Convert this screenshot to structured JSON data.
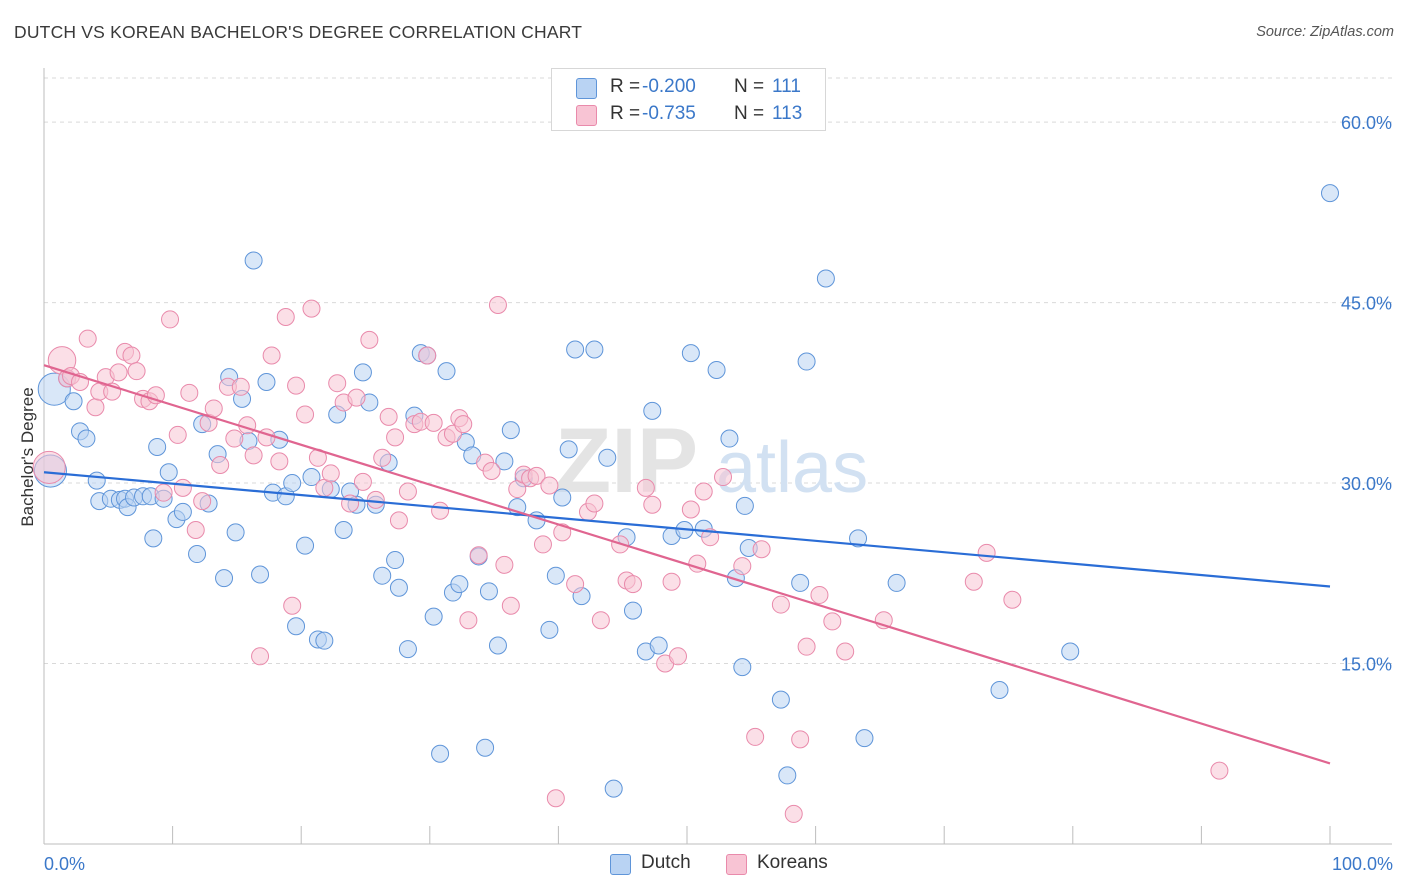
{
  "title": "DUTCH VS KOREAN BACHELOR'S DEGREE CORRELATION CHART",
  "source": "Source: ZipAtlas.com",
  "watermark": {
    "zip": "ZIP",
    "atlas": "atlas"
  },
  "colors": {
    "dutch_fill": "#b9d3f3",
    "dutch_stroke": "#5f95d9",
    "dutch_line": "#2a6dd6",
    "korean_fill": "#f8c4d4",
    "korean_stroke": "#e98aab",
    "korean_line": "#e06590",
    "axis_label": "#3b78c9",
    "grid": "#d9d9d9"
  },
  "legend_top": {
    "rows": [
      {
        "series": "Dutch",
        "r_label": "R =",
        "r_value": "-0.200",
        "n_label": "N =",
        "n_value": "111"
      },
      {
        "series": "Koreans",
        "r_label": "R =",
        "r_value": "-0.735",
        "n_label": "N =",
        "n_value": "113"
      }
    ]
  },
  "legend_bottom": {
    "items": [
      "Dutch",
      "Koreans"
    ]
  },
  "chart_data": {
    "type": "scatter",
    "title": "DUTCH VS KOREAN BACHELOR'S DEGREE CORRELATION CHART",
    "xlabel": "",
    "ylabel": "Bachelor's Degree",
    "xlim": [
      0,
      100
    ],
    "ylim": [
      0,
      63.5
    ],
    "x_tick_labels": [
      "0.0%",
      "100.0%"
    ],
    "y_ticks": [
      15,
      30,
      45,
      60
    ],
    "y_tick_labels": [
      "15.0%",
      "30.0%",
      "45.0%",
      "60.0%"
    ],
    "grid": true,
    "legend_position": "top-center",
    "series": [
      {
        "name": "Dutch",
        "trend": {
          "x": [
            0,
            100
          ],
          "y": [
            30.9,
            21.4
          ]
        },
        "points": [
          [
            0.5,
            31.0,
            1.4
          ],
          [
            0.8,
            37.8,
            1.4
          ],
          [
            1.8,
            38.7,
            1
          ],
          [
            2.3,
            36.8,
            1
          ],
          [
            2.8,
            34.3,
            1
          ],
          [
            3.3,
            33.7,
            1
          ],
          [
            4.1,
            30.2,
            1
          ],
          [
            4.3,
            28.5,
            1
          ],
          [
            5.2,
            28.7,
            1
          ],
          [
            5.9,
            28.6,
            1
          ],
          [
            6.3,
            28.7,
            1
          ],
          [
            6.5,
            28.0,
            1
          ],
          [
            7.0,
            28.8,
            1
          ],
          [
            7.7,
            28.9,
            1
          ],
          [
            8.3,
            28.9,
            1
          ],
          [
            8.5,
            25.4,
            1
          ],
          [
            8.8,
            33.0,
            1
          ],
          [
            9.3,
            28.7,
            1
          ],
          [
            9.7,
            30.9,
            1
          ],
          [
            10.3,
            27.0,
            1
          ],
          [
            10.8,
            27.6,
            1
          ],
          [
            11.9,
            24.1,
            1
          ],
          [
            12.3,
            34.9,
            1
          ],
          [
            12.8,
            28.3,
            1
          ],
          [
            13.5,
            32.4,
            1
          ],
          [
            14.0,
            22.1,
            1
          ],
          [
            14.4,
            38.8,
            1
          ],
          [
            14.9,
            25.9,
            1
          ],
          [
            15.4,
            37.0,
            1
          ],
          [
            15.9,
            33.5,
            1
          ],
          [
            16.3,
            48.5,
            1
          ],
          [
            16.8,
            22.4,
            1
          ],
          [
            17.3,
            38.4,
            1
          ],
          [
            17.8,
            29.2,
            1
          ],
          [
            18.3,
            33.6,
            1
          ],
          [
            18.8,
            28.9,
            1
          ],
          [
            19.3,
            30.0,
            1
          ],
          [
            19.6,
            18.1,
            1
          ],
          [
            20.3,
            24.8,
            1
          ],
          [
            20.8,
            30.5,
            1
          ],
          [
            21.3,
            17.0,
            1
          ],
          [
            21.8,
            16.9,
            1
          ],
          [
            22.3,
            29.5,
            1
          ],
          [
            22.8,
            35.7,
            1
          ],
          [
            23.3,
            26.1,
            1
          ],
          [
            23.8,
            29.3,
            1
          ],
          [
            24.3,
            28.2,
            1
          ],
          [
            24.8,
            39.2,
            1
          ],
          [
            25.3,
            36.7,
            1
          ],
          [
            25.8,
            28.2,
            1
          ],
          [
            26.3,
            22.3,
            1
          ],
          [
            26.8,
            31.7,
            1
          ],
          [
            27.3,
            23.6,
            1
          ],
          [
            27.6,
            21.3,
            1
          ],
          [
            28.3,
            16.2,
            1
          ],
          [
            28.8,
            35.6,
            1
          ],
          [
            29.3,
            40.8,
            1
          ],
          [
            29.8,
            40.6,
            1
          ],
          [
            30.3,
            18.9,
            1
          ],
          [
            30.8,
            7.5,
            1
          ],
          [
            31.3,
            39.3,
            1
          ],
          [
            31.8,
            20.9,
            1
          ],
          [
            32.3,
            21.6,
            1
          ],
          [
            32.8,
            33.4,
            1
          ],
          [
            33.3,
            32.3,
            1
          ],
          [
            33.8,
            23.9,
            1
          ],
          [
            34.3,
            8.0,
            1
          ],
          [
            34.6,
            21.0,
            1
          ],
          [
            35.3,
            16.5,
            1
          ],
          [
            35.8,
            31.8,
            1
          ],
          [
            36.3,
            34.4,
            1
          ],
          [
            36.8,
            28.0,
            1
          ],
          [
            37.3,
            30.4,
            1
          ],
          [
            38.3,
            26.9,
            1
          ],
          [
            39.3,
            17.8,
            1
          ],
          [
            39.8,
            22.3,
            1
          ],
          [
            40.3,
            28.8,
            1
          ],
          [
            40.8,
            32.8,
            1
          ],
          [
            41.3,
            41.1,
            1
          ],
          [
            41.8,
            20.6,
            1
          ],
          [
            42.8,
            41.1,
            1
          ],
          [
            43.8,
            32.1,
            1
          ],
          [
            44.3,
            4.6,
            1
          ],
          [
            45.3,
            25.5,
            1
          ],
          [
            45.8,
            19.4,
            1
          ],
          [
            46.8,
            16.0,
            1
          ],
          [
            47.3,
            36.0,
            1
          ],
          [
            47.8,
            16.5,
            1
          ],
          [
            48.8,
            25.6,
            1
          ],
          [
            49.8,
            26.1,
            1
          ],
          [
            50.3,
            40.8,
            1
          ],
          [
            51.3,
            26.2,
            1
          ],
          [
            52.3,
            39.4,
            1
          ],
          [
            53.3,
            33.7,
            1
          ],
          [
            53.8,
            22.1,
            1
          ],
          [
            54.3,
            14.7,
            1
          ],
          [
            54.8,
            24.6,
            1
          ],
          [
            54.5,
            28.1,
            1
          ],
          [
            57.3,
            12.0,
            1
          ],
          [
            57.8,
            5.7,
            1
          ],
          [
            58.8,
            21.7,
            1
          ],
          [
            59.3,
            40.1,
            1
          ],
          [
            60.8,
            47.0,
            1
          ],
          [
            63.3,
            25.4,
            1
          ],
          [
            63.8,
            8.8,
            1
          ],
          [
            66.3,
            21.7,
            1
          ],
          [
            74.3,
            12.8,
            1
          ],
          [
            79.8,
            16.0,
            1
          ],
          [
            100.0,
            54.1,
            1
          ]
        ]
      },
      {
        "name": "Koreans",
        "trend": {
          "x": [
            0,
            100
          ],
          "y": [
            39.8,
            6.7
          ]
        },
        "points": [
          [
            0.4,
            31.3,
            1.4
          ],
          [
            1.4,
            40.2,
            1.2
          ],
          [
            1.8,
            38.7,
            1
          ],
          [
            2.1,
            38.9,
            1
          ],
          [
            2.8,
            38.4,
            1
          ],
          [
            3.4,
            42.0,
            1
          ],
          [
            4.0,
            36.3,
            1
          ],
          [
            4.3,
            37.6,
            1
          ],
          [
            4.8,
            38.8,
            1
          ],
          [
            5.3,
            37.6,
            1
          ],
          [
            5.8,
            39.2,
            1
          ],
          [
            6.3,
            40.9,
            1
          ],
          [
            6.8,
            40.6,
            1
          ],
          [
            7.2,
            39.3,
            1
          ],
          [
            7.7,
            37.0,
            1
          ],
          [
            8.2,
            36.8,
            1
          ],
          [
            8.7,
            37.3,
            1
          ],
          [
            9.3,
            29.2,
            1
          ],
          [
            9.8,
            43.6,
            1
          ],
          [
            10.4,
            34.0,
            1
          ],
          [
            10.8,
            29.6,
            1
          ],
          [
            11.3,
            37.5,
            1
          ],
          [
            11.8,
            26.1,
            1
          ],
          [
            12.3,
            28.5,
            1
          ],
          [
            12.8,
            35.0,
            1
          ],
          [
            13.2,
            36.2,
            1
          ],
          [
            13.7,
            31.5,
            1
          ],
          [
            14.3,
            38.0,
            1
          ],
          [
            14.8,
            33.7,
            1
          ],
          [
            15.3,
            38.0,
            1
          ],
          [
            15.8,
            34.8,
            1
          ],
          [
            16.3,
            32.3,
            1
          ],
          [
            16.8,
            15.6,
            1
          ],
          [
            17.3,
            33.8,
            1
          ],
          [
            17.7,
            40.6,
            1
          ],
          [
            18.3,
            31.8,
            1
          ],
          [
            18.8,
            43.8,
            1
          ],
          [
            19.3,
            19.8,
            1
          ],
          [
            19.6,
            38.1,
            1
          ],
          [
            20.3,
            35.7,
            1
          ],
          [
            20.8,
            44.5,
            1
          ],
          [
            21.3,
            32.1,
            1
          ],
          [
            21.8,
            29.6,
            1
          ],
          [
            22.3,
            30.8,
            1
          ],
          [
            22.8,
            38.3,
            1
          ],
          [
            23.3,
            36.7,
            1
          ],
          [
            23.8,
            28.3,
            1
          ],
          [
            24.3,
            37.1,
            1
          ],
          [
            24.8,
            30.1,
            1
          ],
          [
            25.3,
            41.9,
            1
          ],
          [
            25.8,
            28.6,
            1
          ],
          [
            26.3,
            32.1,
            1
          ],
          [
            26.8,
            35.5,
            1
          ],
          [
            27.3,
            33.8,
            1
          ],
          [
            27.6,
            26.9,
            1
          ],
          [
            28.3,
            29.3,
            1
          ],
          [
            28.8,
            34.9,
            1
          ],
          [
            29.3,
            35.1,
            1
          ],
          [
            29.8,
            40.6,
            1
          ],
          [
            30.3,
            35.0,
            1
          ],
          [
            30.8,
            27.7,
            1
          ],
          [
            31.3,
            33.8,
            1
          ],
          [
            31.8,
            34.1,
            1
          ],
          [
            32.3,
            35.4,
            1
          ],
          [
            32.6,
            34.9,
            1
          ],
          [
            33.0,
            18.6,
            1
          ],
          [
            33.8,
            24.0,
            1
          ],
          [
            34.3,
            31.7,
            1
          ],
          [
            34.8,
            31.0,
            1
          ],
          [
            35.3,
            44.8,
            1
          ],
          [
            35.8,
            23.2,
            1
          ],
          [
            36.3,
            19.8,
            1
          ],
          [
            36.8,
            29.5,
            1
          ],
          [
            37.3,
            30.7,
            1
          ],
          [
            37.8,
            30.4,
            1
          ],
          [
            38.3,
            30.6,
            1
          ],
          [
            38.8,
            24.9,
            1
          ],
          [
            39.3,
            29.8,
            1
          ],
          [
            39.8,
            3.8,
            1
          ],
          [
            40.3,
            25.9,
            1
          ],
          [
            41.3,
            21.6,
            1
          ],
          [
            42.3,
            27.6,
            1
          ],
          [
            42.8,
            28.3,
            1
          ],
          [
            43.3,
            18.6,
            1
          ],
          [
            44.8,
            24.9,
            1
          ],
          [
            45.3,
            21.9,
            1
          ],
          [
            45.8,
            21.6,
            1
          ],
          [
            46.8,
            29.6,
            1
          ],
          [
            47.3,
            28.2,
            1
          ],
          [
            48.3,
            15.0,
            1
          ],
          [
            48.8,
            21.8,
            1
          ],
          [
            49.3,
            15.6,
            1
          ],
          [
            50.3,
            27.8,
            1
          ],
          [
            50.8,
            23.3,
            1
          ],
          [
            51.3,
            29.3,
            1
          ],
          [
            51.8,
            25.5,
            1
          ],
          [
            52.8,
            30.5,
            1
          ],
          [
            54.3,
            23.1,
            1
          ],
          [
            55.3,
            8.9,
            1
          ],
          [
            55.8,
            24.5,
            1
          ],
          [
            57.3,
            19.9,
            1
          ],
          [
            58.3,
            2.5,
            1
          ],
          [
            58.8,
            8.7,
            1
          ],
          [
            59.3,
            16.4,
            1
          ],
          [
            60.3,
            20.7,
            1
          ],
          [
            61.3,
            18.5,
            1
          ],
          [
            62.3,
            16.0,
            1
          ],
          [
            65.3,
            18.6,
            1
          ],
          [
            72.3,
            21.8,
            1
          ],
          [
            73.3,
            24.2,
            1
          ],
          [
            75.3,
            20.3,
            1
          ],
          [
            91.4,
            6.1,
            1
          ]
        ]
      }
    ]
  }
}
